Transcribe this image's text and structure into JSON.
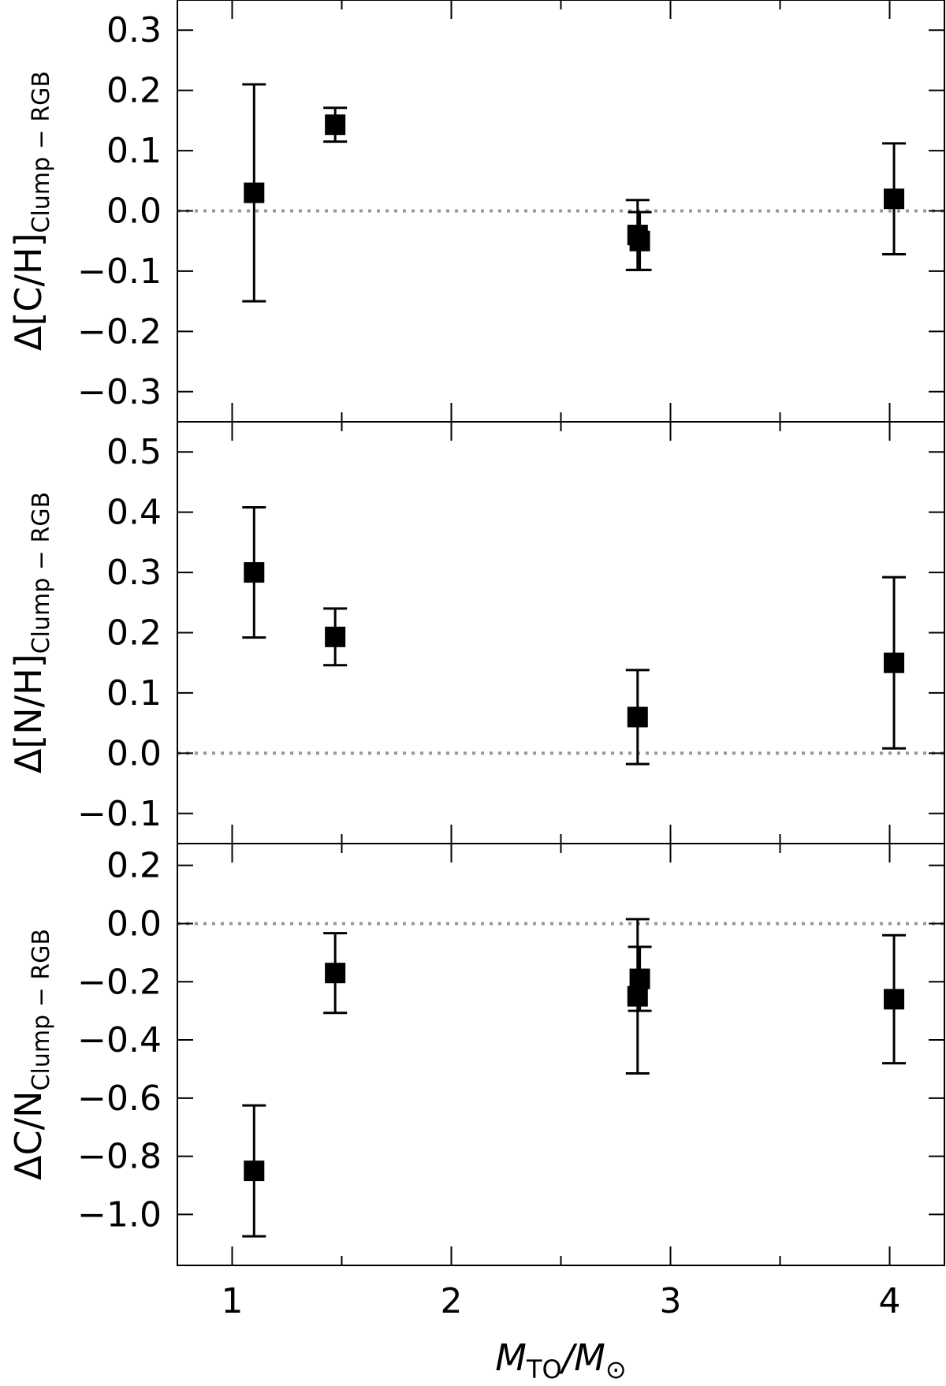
{
  "chart_data": {
    "type": "scatter",
    "x_axis": {
      "label_main": "M",
      "label_sub": "TO",
      "label_div": "/",
      "label_main2": "M",
      "label_sub2": "⊙",
      "range": [
        0.75,
        4.25
      ],
      "ticks": [
        1,
        2,
        3,
        4
      ],
      "minor_ticks": [
        1.5,
        2.5,
        3.5
      ]
    },
    "reference_line": {
      "y": 0.0,
      "style": "dotted",
      "color": "#999999"
    },
    "marker_color": "#000000",
    "panels": [
      {
        "id": "ch",
        "ylabel_main": "Δ[C/H]",
        "ylabel_sub": "Clump − RGB",
        "ylim": [
          -0.35,
          0.35
        ],
        "ticks": [
          0.3,
          0.2,
          0.1,
          0.0,
          -0.1,
          -0.2,
          -0.3
        ],
        "tick_labels": [
          "0.3",
          "0.2",
          "0.1",
          "0.0",
          "−0.1",
          "−0.2",
          "−0.3"
        ],
        "points": [
          {
            "x": 1.1,
            "y": 0.03,
            "err": 0.18
          },
          {
            "x": 1.47,
            "y": 0.143,
            "err": 0.028
          },
          {
            "x": 2.85,
            "y": -0.04,
            "err": 0.058
          },
          {
            "x": 2.86,
            "y": -0.05,
            "err": 0.048
          },
          {
            "x": 4.02,
            "y": 0.02,
            "err": 0.092
          }
        ]
      },
      {
        "id": "nh",
        "ylabel_main": "Δ[N/H]",
        "ylabel_sub": "Clump − RGB",
        "ylim": [
          -0.15,
          0.55
        ],
        "ticks": [
          0.5,
          0.4,
          0.3,
          0.2,
          0.1,
          0.0,
          -0.1
        ],
        "tick_labels": [
          "0.5",
          "0.4",
          "0.3",
          "0.2",
          "0.1",
          "0.0",
          "−0.1"
        ],
        "points": [
          {
            "x": 1.1,
            "y": 0.3,
            "err": 0.108
          },
          {
            "x": 1.47,
            "y": 0.193,
            "err": 0.047
          },
          {
            "x": 2.85,
            "y": 0.06,
            "err": 0.078
          },
          {
            "x": 4.02,
            "y": 0.15,
            "err": 0.142
          }
        ]
      },
      {
        "id": "cn",
        "ylabel_main": "ΔC/N",
        "ylabel_sub": "Clump − RGB",
        "ylim": [
          -1.175,
          0.275
        ],
        "ticks": [
          0.2,
          0.0,
          -0.2,
          -0.4,
          -0.6,
          -0.8,
          -1.0
        ],
        "tick_labels": [
          "0.2",
          "0.0",
          "−0.2",
          "−0.4",
          "−0.6",
          "−0.8",
          "−1.0"
        ],
        "points": [
          {
            "x": 1.1,
            "y": -0.85,
            "err": 0.225
          },
          {
            "x": 1.47,
            "y": -0.17,
            "err": 0.137
          },
          {
            "x": 2.85,
            "y": -0.25,
            "err": 0.265
          },
          {
            "x": 2.86,
            "y": -0.19,
            "err": 0.11
          },
          {
            "x": 4.02,
            "y": -0.26,
            "err": 0.22
          }
        ]
      }
    ]
  }
}
